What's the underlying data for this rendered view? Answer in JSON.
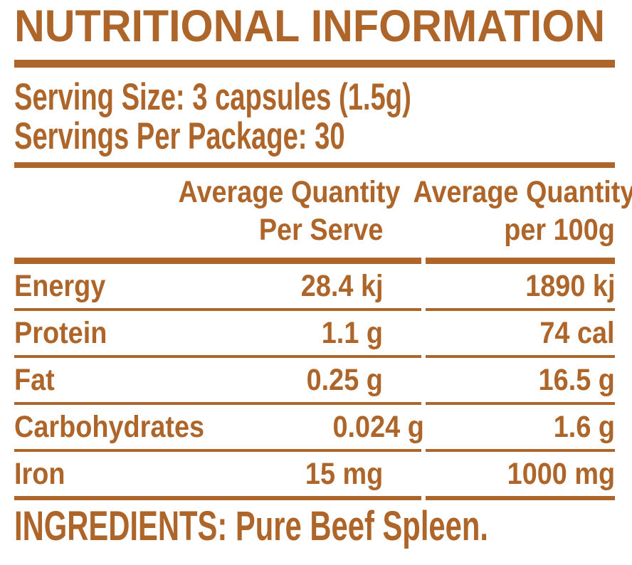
{
  "colors": {
    "brown": "#AE6529",
    "background": "#FFFFFF"
  },
  "title": "NUTRITIONAL INFORMATION",
  "serving_info": {
    "serving_size": "Serving Size: 3 capsules (1.5g)",
    "servings_per_package": "Servings Per Package: 30"
  },
  "table": {
    "per_serve_header": {
      "line1": "Average Quantity",
      "line2": "Per Serve"
    },
    "per_100g_header": {
      "line1": "Average Quantity",
      "line2": "per 100g"
    },
    "rows": [
      {
        "nutrient": "Energy",
        "per_serve": "28.4 kj",
        "per_100g": "1890 kj"
      },
      {
        "nutrient": "Protein",
        "per_serve": "1.1 g",
        "per_100g": "74 cal"
      },
      {
        "nutrient": "Fat",
        "per_serve": "0.25 g",
        "per_100g": "16.5 g"
      },
      {
        "nutrient": "Carbohydrates",
        "per_serve": "0.024 g",
        "per_100g": "1.6 g"
      },
      {
        "nutrient": "Iron",
        "per_serve": "15 mg",
        "per_100g": "1000 mg"
      }
    ]
  },
  "ingredients": "INGREDIENTS: Pure Beef Spleen."
}
